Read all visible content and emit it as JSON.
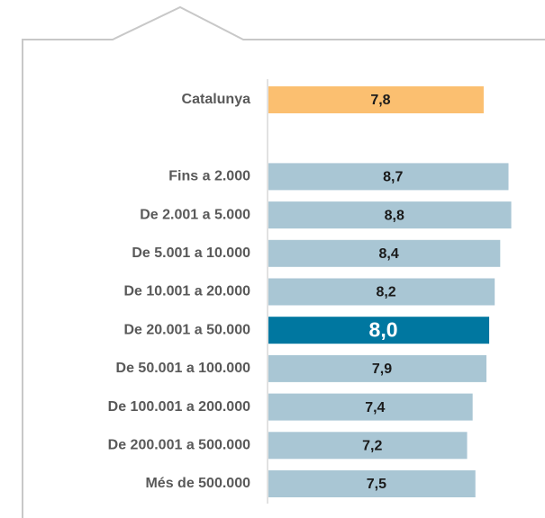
{
  "chart_data": {
    "type": "barh",
    "categories": [
      "Catalunya",
      null,
      "Fins a 2.000",
      "De 2.001 a 5.000",
      "De 5.001 a 10.000",
      "De 10.001 a 20.000",
      "De 20.001 a 50.000",
      "De 50.001 a 100.000",
      "De 100.001 a 200.000",
      "De 200.001 a 500.000",
      "Més de 500.000"
    ],
    "values": [
      7.8,
      null,
      8.7,
      8.8,
      8.4,
      8.2,
      8.0,
      7.9,
      7.4,
      7.2,
      7.5
    ],
    "value_labels": [
      "7,8",
      null,
      "8,7",
      "8,8",
      "8,4",
      "8,2",
      "8,0",
      "7,9",
      "7,4",
      "7,2",
      "7,5"
    ],
    "colors": [
      "#fbbf70",
      null,
      "#a9c6d4",
      "#a9c6d4",
      "#a9c6d4",
      "#a9c6d4",
      "#0077a0",
      "#a9c6d4",
      "#a9c6d4",
      "#a9c6d4",
      "#a9c6d4"
    ],
    "xlim": [
      0,
      9.5
    ]
  }
}
